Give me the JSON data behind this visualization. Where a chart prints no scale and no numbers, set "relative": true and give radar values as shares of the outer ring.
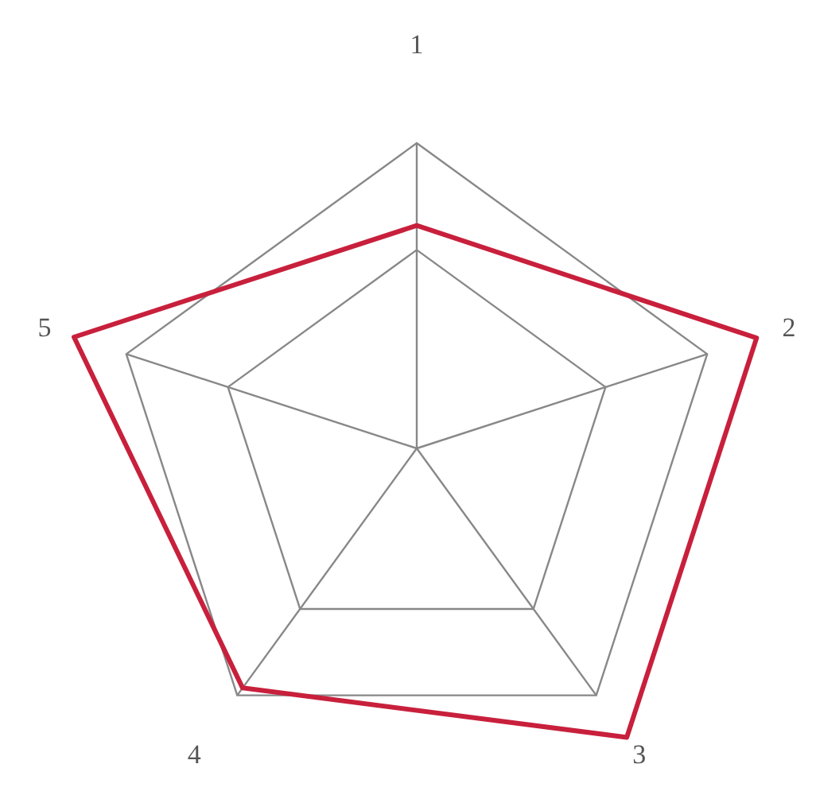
{
  "chart_data": {
    "type": "radar",
    "relative": true,
    "categories": [
      "1",
      "2",
      "3",
      "4",
      "5"
    ],
    "series": [
      {
        "color": "#c8203c",
        "values": [
          0.73,
          1.17,
          1.17,
          0.97,
          1.18
        ]
      }
    ]
  }
}
